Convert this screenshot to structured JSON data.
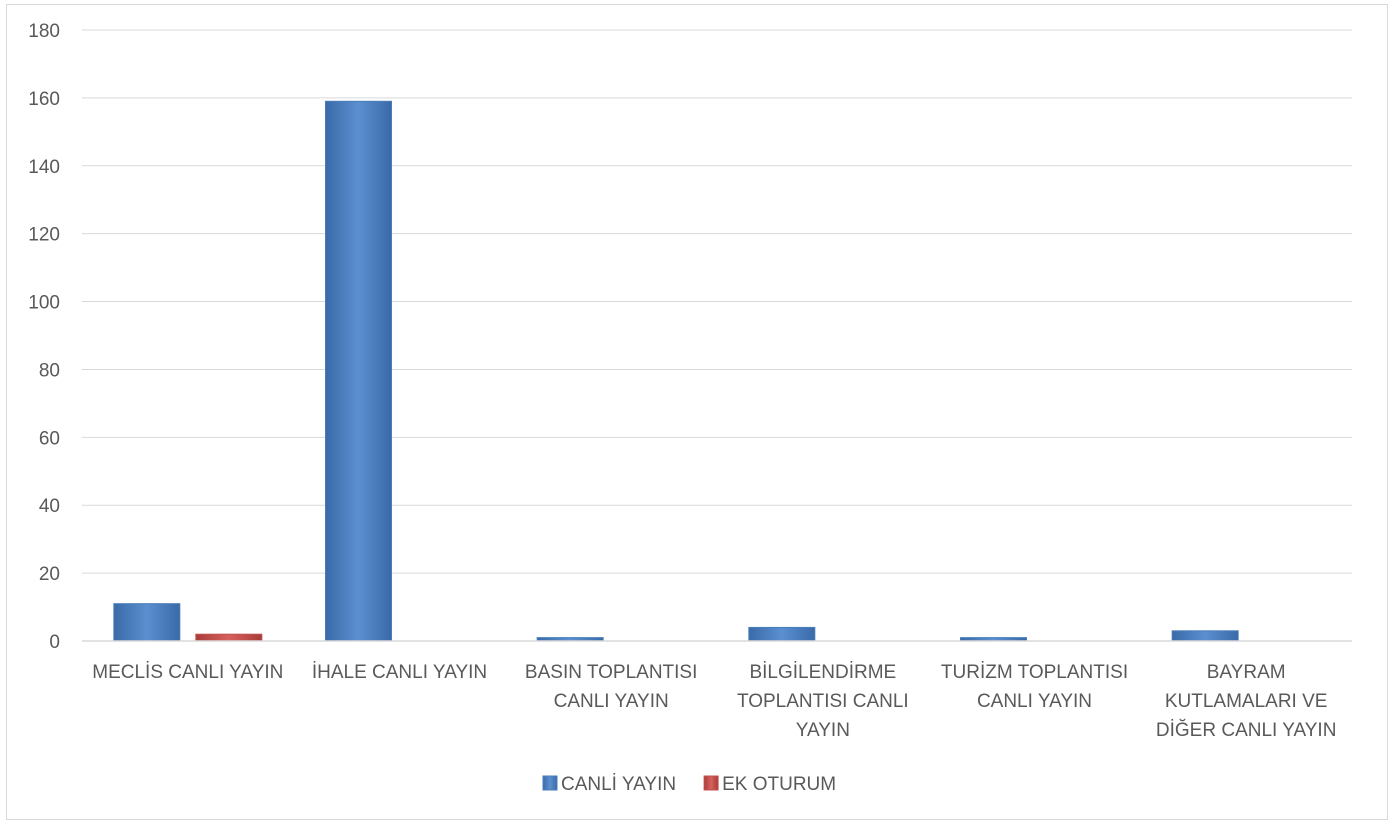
{
  "chart_data": {
    "type": "bar",
    "title": "",
    "xlabel": "",
    "ylabel": "",
    "ylim": [
      0,
      180
    ],
    "yticks": [
      0,
      20,
      40,
      60,
      80,
      100,
      120,
      140,
      160,
      180
    ],
    "grid": true,
    "legend_position": "bottom",
    "categories": [
      [
        "MECLİS CANLI YAYIN"
      ],
      [
        "İHALE CANLI YAYIN"
      ],
      [
        "BASIN TOPLANTISI",
        "CANLI YAYIN"
      ],
      [
        "BİLGİLENDİRME",
        "TOPLANTISI CANLI",
        "YAYIN"
      ],
      [
        "TURİZM TOPLANTISI",
        "CANLI YAYIN"
      ],
      [
        "BAYRAM",
        "KUTLAMALARI VE",
        "DİĞER CANLI YAYIN"
      ]
    ],
    "series": [
      {
        "name": "CANLİ YAYIN",
        "color": "#4a7ebb",
        "values": [
          11,
          159,
          1,
          4,
          1,
          3
        ]
      },
      {
        "name": "EK OTURUM",
        "color": "#c0504d",
        "values": [
          2,
          0,
          0,
          0,
          0,
          0
        ]
      }
    ]
  }
}
